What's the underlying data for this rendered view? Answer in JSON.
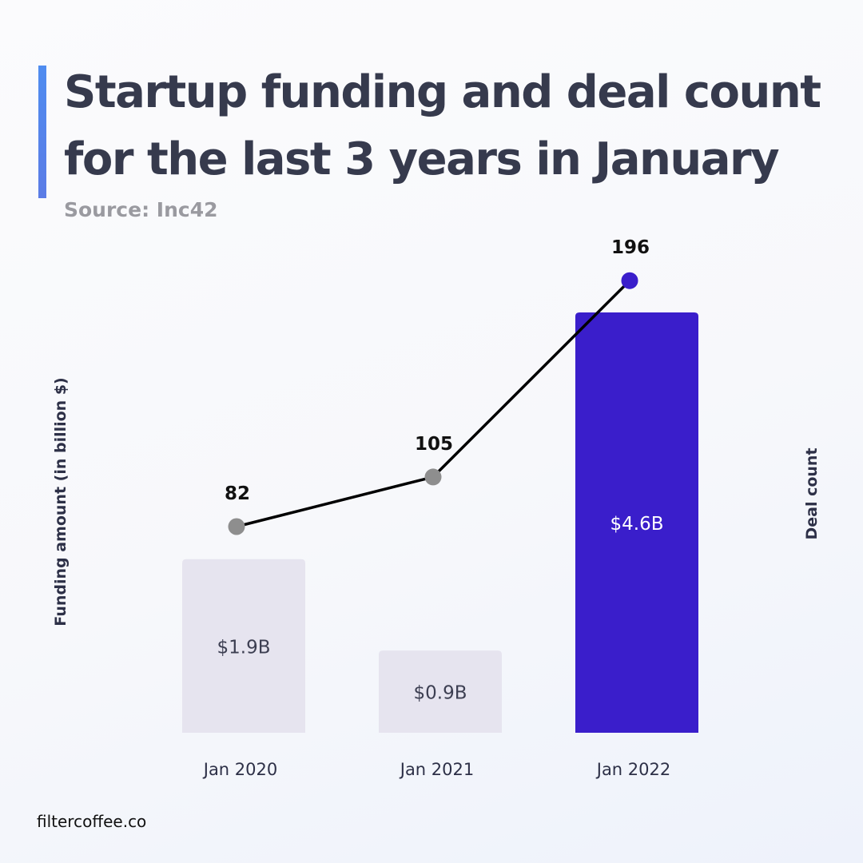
{
  "header": {
    "title": "Startup funding and deal count for the last 3 years in January",
    "source": "Source: Inc42"
  },
  "footer": {
    "brand": "filtercoffee.co"
  },
  "colors": {
    "bar_default": "#e6e4ef",
    "bar_highlight": "#3a1ecb",
    "line": "#000000",
    "point_default": "#8e8e8e",
    "point_highlight": "#3a1ecb",
    "title": "#363a4d"
  },
  "chart_data": {
    "type": "bar",
    "categories": [
      "Jan 2020",
      "Jan 2021",
      "Jan 2022"
    ],
    "ylabel": "Funding amount (in billion $)",
    "y2label": "Deal count",
    "grid": false,
    "series": [
      {
        "type": "bar",
        "values": [
          1.9,
          0.9,
          4.6
        ],
        "labels": [
          "$1.9B",
          "$0.9B",
          "$4.6B"
        ],
        "highlight": [
          false,
          false,
          true
        ]
      },
      {
        "type": "line",
        "values": [
          82,
          105,
          196
        ],
        "labels": [
          "82",
          "105",
          "196"
        ],
        "highlight": [
          false,
          false,
          true
        ]
      }
    ]
  }
}
